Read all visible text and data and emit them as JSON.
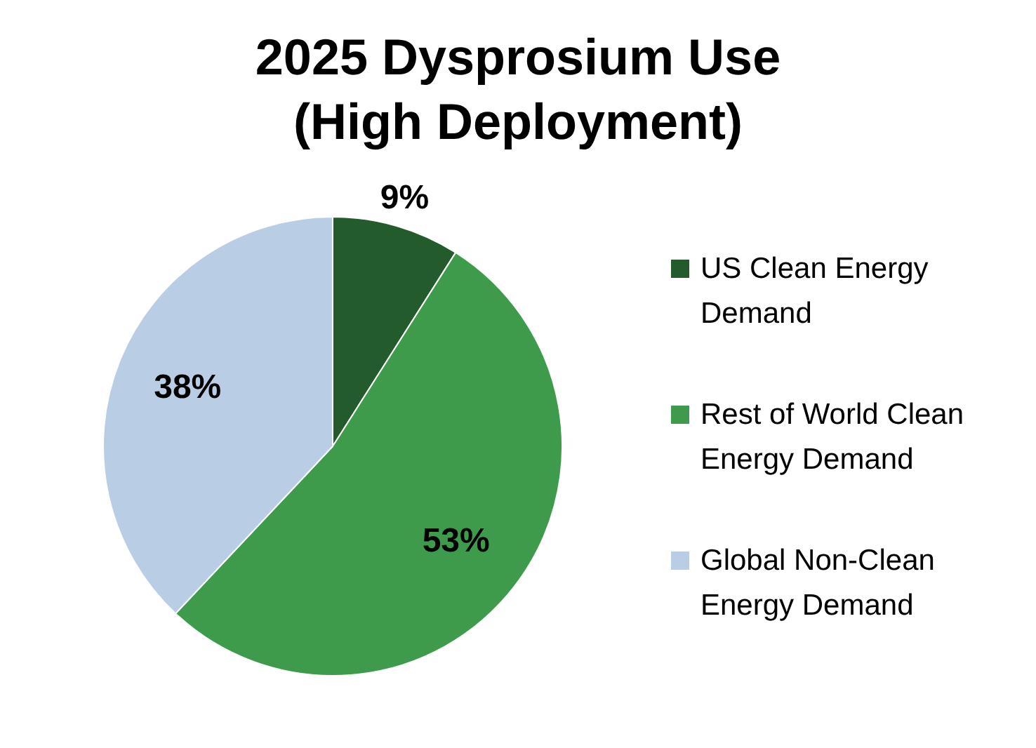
{
  "chart_data": {
    "type": "pie",
    "title": "2025 Dysprosium Use (High Deployment)",
    "categories": [
      "US Clean Energy Demand",
      "Rest of World Clean Energy Demand",
      "Global Non-Clean Energy Demand"
    ],
    "values": [
      9,
      53,
      38
    ],
    "colors": [
      "#235b2c",
      "#3d9b4b",
      "#b9cde5"
    ],
    "value_labels": [
      "9%",
      "53%",
      "38%"
    ],
    "legend": "right"
  }
}
